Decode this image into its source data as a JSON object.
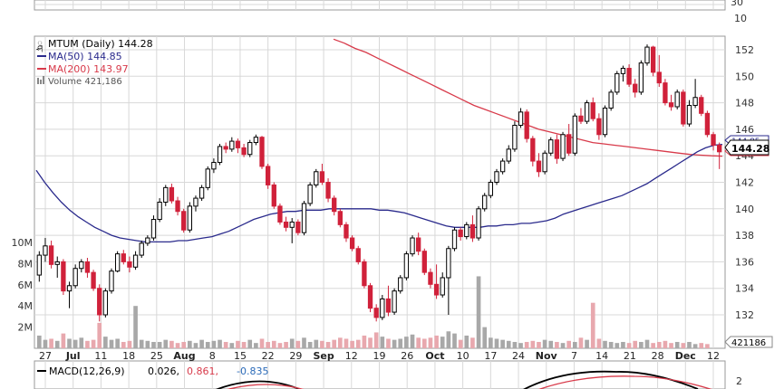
{
  "legend": {
    "symbol_line": "MTUM (Daily) 144.28",
    "ma50": "MA(50) 144.85",
    "ma200": "MA(200) 143.97",
    "volume": "Volume 421,186",
    "macd_prefix": "MACD(12,26,9)",
    "macd_v1": "0.026,",
    "macd_v2": "0.861,",
    "macd_v3": "-0.835"
  },
  "top_panel_ticks": [
    "30",
    "10"
  ],
  "price_ticks": [
    "152",
    "150",
    "148",
    "146",
    "144",
    "142",
    "140",
    "138",
    "136",
    "134",
    "132"
  ],
  "volume_ticks": [
    "10M",
    "8M",
    "6M",
    "4M",
    "2M"
  ],
  "macd_ticks": [
    "2"
  ],
  "tags": {
    "ma50_tag": "144.85",
    "ma200_tag": "143.97",
    "last_tag": "144.28",
    "volume_tag": "421186"
  },
  "date_labels": [
    {
      "text": "27",
      "bold": false
    },
    {
      "text": "Jul",
      "bold": true
    },
    {
      "text": "11",
      "bold": false
    },
    {
      "text": "18",
      "bold": false
    },
    {
      "text": "25",
      "bold": false
    },
    {
      "text": "Aug",
      "bold": true
    },
    {
      "text": "8",
      "bold": false
    },
    {
      "text": "15",
      "bold": false
    },
    {
      "text": "22",
      "bold": false
    },
    {
      "text": "29",
      "bold": false
    },
    {
      "text": "Sep",
      "bold": true
    },
    {
      "text": "12",
      "bold": false
    },
    {
      "text": "19",
      "bold": false
    },
    {
      "text": "26",
      "bold": false
    },
    {
      "text": "Oct",
      "bold": true
    },
    {
      "text": "10",
      "bold": false
    },
    {
      "text": "17",
      "bold": false
    },
    {
      "text": "24",
      "bold": false
    },
    {
      "text": "Nov",
      "bold": true
    },
    {
      "text": "7",
      "bold": false
    },
    {
      "text": "14",
      "bold": false
    },
    {
      "text": "21",
      "bold": false
    },
    {
      "text": "28",
      "bold": false
    },
    {
      "text": "Dec",
      "bold": true
    },
    {
      "text": "12",
      "bold": false
    }
  ],
  "colors": {
    "up": "#000000",
    "down": "#d0213a",
    "ma50": "#2a2a8c",
    "ma200": "#d83a4a",
    "grid": "#d8d8d8",
    "volume_up": "#a8a8a8",
    "volume_down": "#e8a8ae"
  },
  "chart_data": {
    "type": "candlestick",
    "symbol": "MTUM",
    "ylim_price": [
      131,
      153
    ],
    "ylim_volume": [
      0,
      11
    ],
    "candles": [
      [
        135.0,
        136.8,
        134.5,
        136.5
      ],
      [
        136.5,
        137.8,
        136.0,
        137.2
      ],
      [
        137.2,
        137.6,
        135.5,
        135.8
      ],
      [
        135.8,
        136.4,
        134.8,
        136.0
      ],
      [
        136.0,
        136.2,
        133.5,
        133.8
      ],
      [
        133.8,
        134.5,
        132.5,
        134.2
      ],
      [
        134.2,
        135.8,
        134.0,
        135.5
      ],
      [
        135.5,
        136.2,
        135.2,
        136.0
      ],
      [
        136.0,
        136.3,
        134.8,
        135.2
      ],
      [
        135.2,
        135.4,
        133.8,
        134.0
      ],
      [
        134.0,
        134.3,
        131.5,
        132.0
      ],
      [
        132.0,
        134.0,
        131.8,
        133.8
      ],
      [
        133.8,
        135.5,
        133.6,
        135.3
      ],
      [
        135.3,
        136.8,
        135.2,
        136.6
      ],
      [
        136.6,
        136.9,
        135.8,
        136.0
      ],
      [
        136.0,
        136.4,
        135.2,
        135.6
      ],
      [
        135.6,
        136.8,
        135.4,
        136.5
      ],
      [
        136.5,
        137.6,
        136.3,
        137.4
      ],
      [
        137.4,
        138.0,
        137.2,
        137.8
      ],
      [
        137.8,
        139.5,
        137.6,
        139.2
      ],
      [
        139.2,
        140.8,
        139.0,
        140.5
      ],
      [
        140.5,
        141.8,
        140.2,
        141.6
      ],
      [
        141.6,
        141.9,
        140.4,
        140.6
      ],
      [
        140.6,
        140.9,
        139.5,
        139.8
      ],
      [
        139.8,
        140.0,
        138.2,
        138.4
      ],
      [
        138.4,
        140.5,
        138.2,
        140.2
      ],
      [
        140.2,
        141.0,
        139.8,
        140.8
      ],
      [
        140.8,
        141.8,
        140.6,
        141.6
      ],
      [
        141.6,
        143.2,
        141.4,
        143.0
      ],
      [
        143.0,
        143.8,
        142.7,
        143.5
      ],
      [
        143.5,
        144.9,
        143.3,
        144.7
      ],
      [
        144.7,
        145.0,
        144.2,
        144.5
      ],
      [
        144.5,
        145.4,
        144.3,
        145.1
      ],
      [
        145.1,
        145.3,
        144.2,
        144.6
      ],
      [
        144.6,
        144.9,
        143.9,
        144.1
      ],
      [
        144.1,
        145.2,
        143.9,
        145.0
      ],
      [
        145.0,
        145.6,
        144.8,
        145.4
      ],
      [
        145.4,
        145.5,
        143.0,
        143.2
      ],
      [
        143.2,
        143.4,
        141.5,
        141.8
      ],
      [
        141.8,
        142.0,
        140.0,
        140.2
      ],
      [
        140.2,
        140.4,
        138.8,
        139.0
      ],
      [
        139.0,
        139.4,
        138.3,
        138.6
      ],
      [
        138.6,
        139.3,
        137.4,
        139.0
      ],
      [
        139.0,
        139.2,
        138.0,
        138.2
      ],
      [
        138.2,
        140.6,
        138.0,
        140.4
      ],
      [
        140.4,
        142.0,
        140.2,
        141.8
      ],
      [
        141.8,
        143.0,
        141.6,
        142.8
      ],
      [
        142.8,
        143.4,
        141.8,
        142.0
      ],
      [
        142.0,
        142.3,
        140.5,
        140.8
      ],
      [
        140.8,
        141.0,
        139.5,
        139.8
      ],
      [
        139.8,
        140.0,
        138.6,
        138.8
      ],
      [
        138.8,
        139.0,
        137.5,
        137.8
      ],
      [
        137.8,
        138.0,
        136.8,
        137.0
      ],
      [
        137.0,
        137.2,
        135.8,
        136.0
      ],
      [
        136.0,
        136.2,
        134.0,
        134.2
      ],
      [
        134.2,
        134.4,
        132.2,
        132.5
      ],
      [
        132.5,
        132.8,
        131.5,
        131.8
      ],
      [
        131.8,
        133.5,
        131.6,
        133.2
      ],
      [
        133.2,
        134.2,
        131.9,
        132.2
      ],
      [
        132.2,
        134.0,
        132.0,
        133.8
      ],
      [
        133.8,
        135.0,
        133.6,
        134.8
      ],
      [
        134.8,
        136.8,
        134.6,
        136.6
      ],
      [
        136.6,
        138.0,
        136.4,
        137.8
      ],
      [
        137.8,
        138.2,
        136.5,
        136.8
      ],
      [
        136.8,
        137.0,
        135.0,
        135.2
      ],
      [
        135.2,
        135.5,
        134.0,
        134.3
      ],
      [
        134.3,
        135.8,
        133.2,
        133.5
      ],
      [
        133.5,
        135.2,
        133.3,
        134.8
      ],
      [
        134.8,
        137.2,
        132.0,
        137.0
      ],
      [
        137.0,
        138.6,
        136.8,
        138.4
      ],
      [
        138.4,
        138.6,
        137.6,
        137.9
      ],
      [
        137.9,
        139.0,
        137.7,
        138.8
      ],
      [
        138.8,
        139.5,
        137.5,
        137.8
      ],
      [
        137.8,
        140.2,
        137.6,
        140.0
      ],
      [
        140.0,
        141.2,
        139.8,
        141.0
      ],
      [
        141.0,
        142.2,
        140.8,
        142.0
      ],
      [
        142.0,
        143.0,
        141.8,
        142.8
      ],
      [
        142.8,
        143.8,
        142.6,
        143.6
      ],
      [
        143.6,
        144.8,
        143.4,
        144.5
      ],
      [
        144.5,
        146.6,
        144.3,
        146.3
      ],
      [
        146.3,
        147.6,
        146.1,
        147.3
      ],
      [
        147.3,
        147.5,
        145.0,
        145.3
      ],
      [
        145.3,
        145.5,
        143.2,
        143.6
      ],
      [
        143.6,
        144.2,
        142.4,
        142.8
      ],
      [
        142.8,
        144.4,
        142.6,
        144.2
      ],
      [
        144.2,
        145.4,
        144.0,
        145.2
      ],
      [
        145.2,
        145.6,
        143.4,
        143.8
      ],
      [
        143.8,
        145.8,
        143.6,
        145.6
      ],
      [
        145.6,
        146.4,
        144.0,
        144.2
      ],
      [
        144.2,
        147.2,
        144.0,
        147.0
      ],
      [
        147.0,
        147.6,
        146.4,
        146.6
      ],
      [
        146.6,
        148.2,
        146.4,
        148.0
      ],
      [
        148.0,
        148.4,
        146.6,
        146.8
      ],
      [
        146.8,
        147.2,
        145.2,
        145.6
      ],
      [
        145.6,
        147.8,
        145.4,
        147.6
      ],
      [
        147.6,
        149.0,
        147.4,
        148.8
      ],
      [
        148.8,
        150.4,
        148.6,
        150.2
      ],
      [
        150.2,
        150.8,
        149.6,
        150.6
      ],
      [
        150.6,
        150.9,
        149.2,
        149.4
      ],
      [
        149.4,
        149.8,
        148.4,
        148.8
      ],
      [
        148.8,
        151.2,
        148.6,
        151.0
      ],
      [
        151.0,
        152.4,
        150.8,
        152.2
      ],
      [
        152.2,
        152.3,
        150.0,
        150.3
      ],
      [
        150.3,
        151.6,
        149.2,
        149.5
      ],
      [
        149.5,
        149.8,
        147.8,
        148.0
      ],
      [
        148.0,
        148.6,
        147.4,
        147.7
      ],
      [
        147.7,
        149.0,
        147.5,
        148.8
      ],
      [
        148.8,
        149.0,
        146.2,
        146.4
      ],
      [
        146.4,
        148.2,
        146.2,
        147.8
      ],
      [
        147.8,
        149.8,
        147.6,
        148.4
      ],
      [
        148.4,
        148.6,
        147.0,
        147.2
      ],
      [
        147.2,
        147.4,
        145.4,
        145.6
      ],
      [
        145.6,
        145.8,
        144.4,
        144.8
      ],
      [
        144.8,
        145.0,
        143.0,
        144.3
      ]
    ],
    "volume_millions": [
      1.2,
      0.8,
      0.9,
      0.7,
      1.4,
      0.9,
      0.8,
      1.0,
      0.7,
      0.8,
      2.4,
      1.1,
      0.8,
      0.9,
      0.6,
      0.7,
      4.0,
      0.8,
      0.7,
      0.6,
      0.6,
      0.8,
      0.7,
      0.5,
      0.6,
      0.7,
      0.5,
      0.8,
      0.6,
      0.7,
      0.8,
      0.6,
      0.5,
      0.7,
      0.6,
      0.8,
      0.5,
      0.9,
      0.6,
      0.7,
      0.5,
      0.6,
      0.9,
      0.7,
      1.0,
      0.6,
      0.8,
      0.7,
      0.6,
      0.8,
      1.0,
      0.9,
      0.7,
      0.8,
      1.2,
      1.0,
      1.5,
      1.1,
      0.9,
      0.8,
      0.9,
      1.1,
      1.3,
      1.0,
      0.9,
      1.0,
      1.2,
      1.1,
      1.6,
      1.4,
      0.8,
      1.2,
      1.0,
      6.8,
      2.0,
      1.0,
      0.9,
      0.8,
      0.7,
      0.6,
      0.5,
      0.6,
      0.7,
      0.6,
      0.8,
      0.7,
      0.6,
      0.5,
      0.7,
      0.6,
      1.0,
      0.8,
      4.3,
      0.9,
      0.7,
      0.6,
      0.5,
      0.6,
      0.5,
      0.7,
      0.6,
      0.8,
      0.5,
      0.6,
      0.7,
      0.5,
      0.6,
      0.5,
      0.6,
      0.4,
      0.5,
      0.4
    ],
    "ma50": [
      142.9,
      142.0,
      141.2,
      140.5,
      139.9,
      139.4,
      139.0,
      138.6,
      138.3,
      138.0,
      137.8,
      137.7,
      137.6,
      137.5,
      137.5,
      137.5,
      137.5,
      137.6,
      137.6,
      137.7,
      137.8,
      137.9,
      138.1,
      138.3,
      138.6,
      138.9,
      139.2,
      139.4,
      139.6,
      139.7,
      139.8,
      139.8,
      139.9,
      139.9,
      139.9,
      140.0,
      140.0,
      140.0,
      140.0,
      140.0,
      140.0,
      139.9,
      139.9,
      139.8,
      139.7,
      139.5,
      139.3,
      139.1,
      138.9,
      138.7,
      138.6,
      138.6,
      138.6,
      138.6,
      138.7,
      138.7,
      138.8,
      138.8,
      138.9,
      138.9,
      139.0,
      139.1,
      139.3,
      139.6,
      139.8,
      140.0,
      140.2,
      140.4,
      140.6,
      140.8,
      141.0,
      141.3,
      141.6,
      141.9,
      142.3,
      142.7,
      143.1,
      143.5,
      143.9,
      144.3,
      144.6,
      144.8,
      144.85
    ],
    "ma50_start_index": 0,
    "ma200": [
      152.8,
      152.5,
      152.1,
      151.8,
      151.4,
      151.0,
      150.6,
      150.2,
      149.8,
      149.4,
      149.0,
      148.6,
      148.2,
      147.8,
      147.5,
      147.2,
      146.9,
      146.6,
      146.3,
      146.0,
      145.8,
      145.6,
      145.4,
      145.2,
      145.0,
      144.9,
      144.8,
      144.7,
      144.6,
      144.5,
      144.4,
      144.3,
      144.2,
      144.1,
      144.05,
      144.0,
      143.97
    ],
    "macd": {
      "macd": 0.026,
      "signal": 0.861,
      "histogram": -0.835
    }
  }
}
